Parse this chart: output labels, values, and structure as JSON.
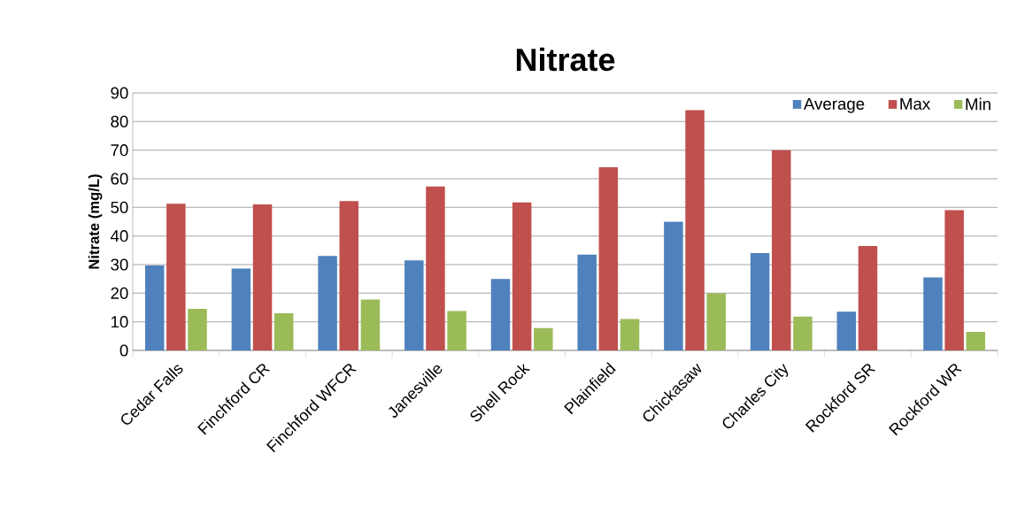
{
  "chart_data": {
    "type": "bar",
    "title": "Nitrate",
    "ylabel": "Nitrate (mg/L)",
    "categories": [
      "Cedar Falls",
      "Finchford CR",
      "Finchford WFCR",
      "Janesville",
      "Shell Rock",
      "Plainfield",
      "Chickasaw",
      "Charles City",
      "Rockford SR",
      "Rockford WR"
    ],
    "series": [
      {
        "name": "Average",
        "color": "#4f81bd",
        "values": [
          29.7,
          28.6,
          33,
          31.5,
          25,
          33.5,
          45,
          34,
          13.5,
          25.5
        ]
      },
      {
        "name": "Max",
        "color": "#c0504d",
        "values": [
          51.3,
          51,
          52.2,
          57.3,
          51.7,
          64,
          84,
          70,
          36.5,
          49
        ]
      },
      {
        "name": "Min",
        "color": "#9bbb59",
        "values": [
          14.5,
          13,
          17.8,
          13.8,
          7.8,
          11,
          20,
          11.8,
          null,
          6.5
        ]
      }
    ],
    "ylim": [
      0,
      90
    ],
    "yticks": [
      0,
      10,
      20,
      30,
      40,
      50,
      60,
      70,
      80,
      90
    ],
    "grid": "y",
    "legend": "top right"
  }
}
